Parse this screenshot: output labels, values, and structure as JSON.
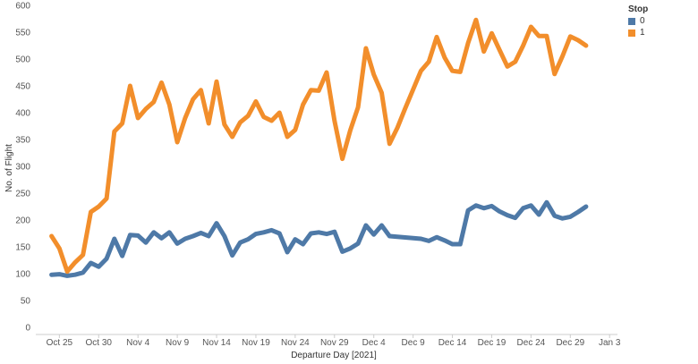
{
  "chart_data": {
    "type": "line",
    "xlabel": "Departure Day [2021]",
    "ylabel": "No. of Flight",
    "ylim": [
      0,
      600
    ],
    "yticks": [
      0,
      50,
      100,
      150,
      200,
      250,
      300,
      350,
      400,
      450,
      500,
      550,
      600
    ],
    "xlim": [
      "2021-10-22",
      "2022-01-04"
    ],
    "xticks": [
      {
        "label": "Oct 25",
        "date": "2021-10-25"
      },
      {
        "label": "Oct 30",
        "date": "2021-10-30"
      },
      {
        "label": "Nov 4",
        "date": "2021-11-04"
      },
      {
        "label": "Nov 9",
        "date": "2021-11-09"
      },
      {
        "label": "Nov 14",
        "date": "2021-11-14"
      },
      {
        "label": "Nov 19",
        "date": "2021-11-19"
      },
      {
        "label": "Nov 24",
        "date": "2021-11-24"
      },
      {
        "label": "Nov 29",
        "date": "2021-11-29"
      },
      {
        "label": "Dec 4",
        "date": "2021-12-04"
      },
      {
        "label": "Dec 9",
        "date": "2021-12-09"
      },
      {
        "label": "Dec 14",
        "date": "2021-12-14"
      },
      {
        "label": "Dec 19",
        "date": "2021-12-19"
      },
      {
        "label": "Dec 24",
        "date": "2021-12-24"
      },
      {
        "label": "Dec 29",
        "date": "2021-12-29"
      },
      {
        "label": "Jan 3",
        "date": "2022-01-03"
      }
    ],
    "grid": false,
    "legend": {
      "title": "Stop",
      "position": "top-right"
    },
    "series": [
      {
        "name": "0",
        "color": "#4e79a7",
        "points": [
          [
            "2021-10-24",
            98
          ],
          [
            "2021-10-25",
            99
          ],
          [
            "2021-10-26",
            96
          ],
          [
            "2021-10-27",
            98
          ],
          [
            "2021-10-28",
            102
          ],
          [
            "2021-10-29",
            120
          ],
          [
            "2021-10-30",
            113
          ],
          [
            "2021-10-31",
            128
          ],
          [
            "2021-11-01",
            165
          ],
          [
            "2021-11-02",
            133
          ],
          [
            "2021-11-03",
            172
          ],
          [
            "2021-11-04",
            171
          ],
          [
            "2021-11-05",
            158
          ],
          [
            "2021-11-06",
            177
          ],
          [
            "2021-11-07",
            166
          ],
          [
            "2021-11-08",
            177
          ],
          [
            "2021-11-09",
            156
          ],
          [
            "2021-11-10",
            165
          ],
          [
            "2021-11-11",
            170
          ],
          [
            "2021-11-12",
            176
          ],
          [
            "2021-11-13",
            170
          ],
          [
            "2021-11-14",
            194
          ],
          [
            "2021-11-15",
            170
          ],
          [
            "2021-11-16",
            134
          ],
          [
            "2021-11-17",
            158
          ],
          [
            "2021-11-18",
            164
          ],
          [
            "2021-11-19",
            174
          ],
          [
            "2021-11-20",
            177
          ],
          [
            "2021-11-21",
            181
          ],
          [
            "2021-11-22",
            175
          ],
          [
            "2021-11-23",
            140
          ],
          [
            "2021-11-24",
            164
          ],
          [
            "2021-11-25",
            155
          ],
          [
            "2021-11-26",
            175
          ],
          [
            "2021-11-27",
            177
          ],
          [
            "2021-11-28",
            174
          ],
          [
            "2021-11-29",
            178
          ],
          [
            "2021-11-30",
            141
          ],
          [
            "2021-12-01",
            147
          ],
          [
            "2021-12-02",
            156
          ],
          [
            "2021-12-03",
            190
          ],
          [
            "2021-12-04",
            173
          ],
          [
            "2021-12-05",
            190
          ],
          [
            "2021-12-06",
            170
          ],
          [
            "2021-12-10",
            165
          ],
          [
            "2021-12-11",
            161
          ],
          [
            "2021-12-12",
            168
          ],
          [
            "2021-12-13",
            162
          ],
          [
            "2021-12-14",
            155
          ],
          [
            "2021-12-15",
            155
          ],
          [
            "2021-12-16",
            218
          ],
          [
            "2021-12-17",
            227
          ],
          [
            "2021-12-18",
            222
          ],
          [
            "2021-12-19",
            226
          ],
          [
            "2021-12-20",
            216
          ],
          [
            "2021-12-21",
            209
          ],
          [
            "2021-12-22",
            204
          ],
          [
            "2021-12-23",
            222
          ],
          [
            "2021-12-24",
            227
          ],
          [
            "2021-12-25",
            210
          ],
          [
            "2021-12-26",
            233
          ],
          [
            "2021-12-27",
            208
          ],
          [
            "2021-12-28",
            203
          ],
          [
            "2021-12-29",
            206
          ],
          [
            "2021-12-30",
            215
          ],
          [
            "2021-12-31",
            225
          ]
        ]
      },
      {
        "name": "1",
        "color": "#f28e2b",
        "points": [
          [
            "2021-10-24",
            170
          ],
          [
            "2021-10-25",
            147
          ],
          [
            "2021-10-26",
            104
          ],
          [
            "2021-10-27",
            121
          ],
          [
            "2021-10-28",
            135
          ],
          [
            "2021-10-29",
            215
          ],
          [
            "2021-10-30",
            225
          ],
          [
            "2021-10-31",
            240
          ],
          [
            "2021-11-01",
            365
          ],
          [
            "2021-11-02",
            380
          ],
          [
            "2021-11-03",
            450
          ],
          [
            "2021-11-04",
            390
          ],
          [
            "2021-11-05",
            407
          ],
          [
            "2021-11-06",
            420
          ],
          [
            "2021-11-07",
            456
          ],
          [
            "2021-11-08",
            415
          ],
          [
            "2021-11-09",
            345
          ],
          [
            "2021-11-10",
            390
          ],
          [
            "2021-11-11",
            425
          ],
          [
            "2021-11-12",
            442
          ],
          [
            "2021-11-13",
            380
          ],
          [
            "2021-11-14",
            458
          ],
          [
            "2021-11-15",
            378
          ],
          [
            "2021-11-16",
            355
          ],
          [
            "2021-11-17",
            382
          ],
          [
            "2021-11-18",
            394
          ],
          [
            "2021-11-19",
            421
          ],
          [
            "2021-11-20",
            392
          ],
          [
            "2021-11-21",
            385
          ],
          [
            "2021-11-22",
            400
          ],
          [
            "2021-11-23",
            355
          ],
          [
            "2021-11-24",
            368
          ],
          [
            "2021-11-25",
            415
          ],
          [
            "2021-11-26",
            442
          ],
          [
            "2021-11-27",
            441
          ],
          [
            "2021-11-28",
            475
          ],
          [
            "2021-11-29",
            385
          ],
          [
            "2021-11-30",
            314
          ],
          [
            "2021-12-01",
            367
          ],
          [
            "2021-12-02",
            410
          ],
          [
            "2021-12-03",
            520
          ],
          [
            "2021-12-04",
            471
          ],
          [
            "2021-12-05",
            437
          ],
          [
            "2021-12-06",
            342
          ],
          [
            "2021-12-07",
            372
          ],
          [
            "2021-12-08",
            408
          ],
          [
            "2021-12-09",
            443
          ],
          [
            "2021-12-10",
            478
          ],
          [
            "2021-12-11",
            495
          ],
          [
            "2021-12-12",
            541
          ],
          [
            "2021-12-13",
            503
          ],
          [
            "2021-12-14",
            478
          ],
          [
            "2021-12-15",
            476
          ],
          [
            "2021-12-16",
            530
          ],
          [
            "2021-12-17",
            573
          ],
          [
            "2021-12-18",
            514
          ],
          [
            "2021-12-19",
            548
          ],
          [
            "2021-12-20",
            517
          ],
          [
            "2021-12-21",
            486
          ],
          [
            "2021-12-22",
            495
          ],
          [
            "2021-12-23",
            525
          ],
          [
            "2021-12-24",
            560
          ],
          [
            "2021-12-25",
            543
          ],
          [
            "2021-12-26",
            543
          ],
          [
            "2021-12-27",
            472
          ],
          [
            "2021-12-28",
            505
          ],
          [
            "2021-12-29",
            542
          ],
          [
            "2021-12-30",
            535
          ],
          [
            "2021-12-31",
            525
          ]
        ]
      }
    ]
  }
}
